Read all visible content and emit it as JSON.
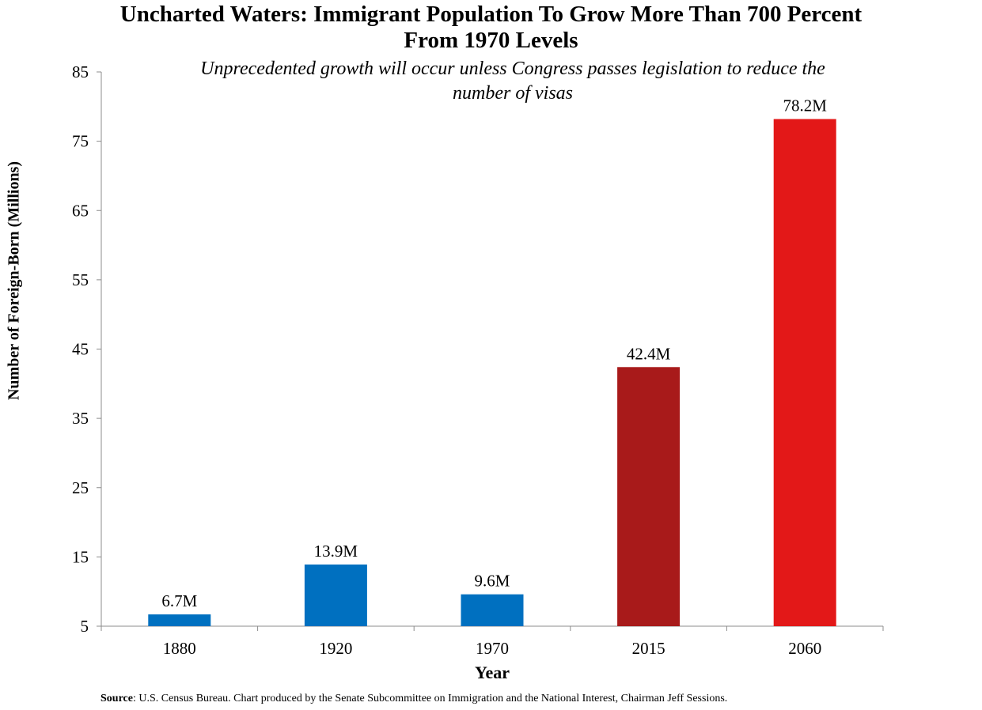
{
  "chart_data": {
    "type": "bar",
    "title": "Uncharted Waters: Immigrant Population To Grow More Than 700 Percent From 1970 Levels",
    "title_lines": [
      "Uncharted Waters: Immigrant Population To Grow More Than 700 Percent",
      "From 1970 Levels"
    ],
    "subtitle": "Unprecedented growth will occur unless Congress passes legislation to reduce the number of visas",
    "subtitle_lines": [
      "Unprecedented growth will occur unless Congress passes legislation to reduce the",
      "number of visas"
    ],
    "xlabel": "Year",
    "ylabel": "Number of Foreign-Born (Millions)",
    "categories": [
      "1880",
      "1920",
      "1970",
      "2015",
      "2060"
    ],
    "values": [
      6.7,
      13.9,
      9.6,
      42.4,
      78.2
    ],
    "data_labels": [
      "6.7M",
      "13.9M",
      "9.6M",
      "42.4M",
      "78.2M"
    ],
    "bar_colors": [
      "#0070C0",
      "#0070C0",
      "#0070C0",
      "#A81A1A",
      "#E31818"
    ],
    "ylim": [
      5,
      85
    ],
    "yticks": [
      5,
      15,
      25,
      35,
      45,
      55,
      65,
      75,
      85
    ],
    "grid": false,
    "legend": "none"
  },
  "source": {
    "label": "Source",
    "text": ":  U.S. Census Bureau. Chart produced by the Senate Subcommittee on Immigration  and the National Interest, Chairman Jeff Sessions."
  }
}
